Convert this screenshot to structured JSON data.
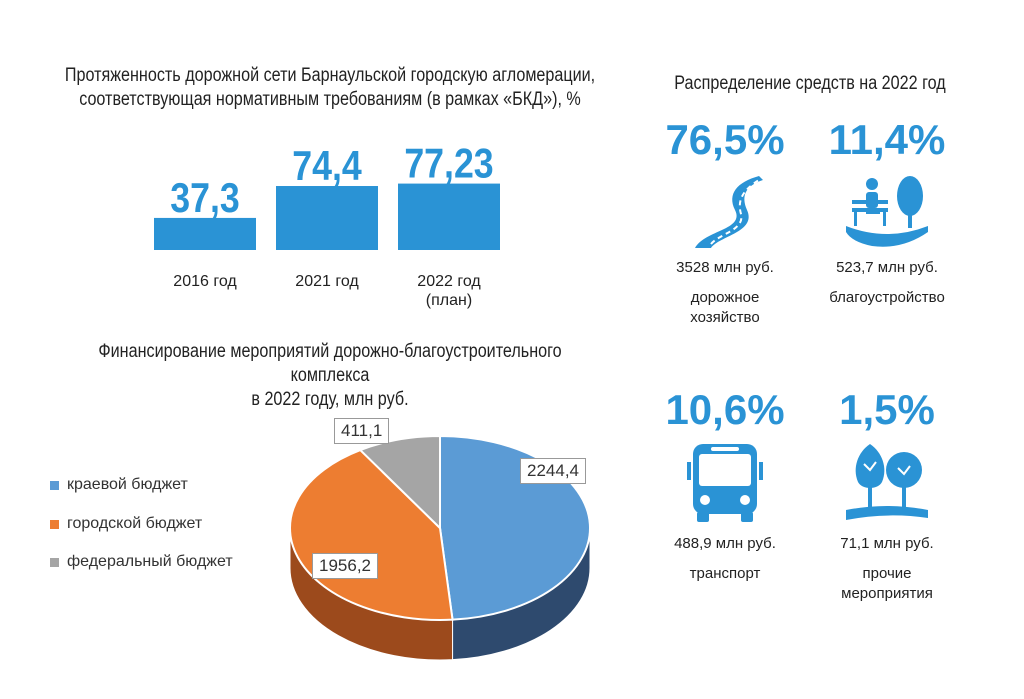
{
  "bar_block": {
    "title_line1": "Протяженность дорожной сети Барнаульской городскую агломерации,",
    "title_line2": "соответствующая нормативным требованиям (в рамках «БКД»), %"
  },
  "pie_block": {
    "title_line1": "Финансирование мероприятий дорожно-благоустроительного комплекса",
    "title_line2": "в 2022 году, млн руб."
  },
  "allocation": {
    "title": "Распределение средств на 2022 год",
    "items": [
      {
        "percent": "76,5%",
        "amount": "3528 млн руб.",
        "name_line1": "дорожное",
        "name_line2": "хозяйство",
        "icon": "road-icon"
      },
      {
        "percent": "11,4%",
        "amount": "523,7 млн руб.",
        "name_line1": "благоустройство",
        "name_line2": "",
        "icon": "park-bench-icon"
      },
      {
        "percent": "10,6%",
        "amount": "488,9 млн руб.",
        "name_line1": "транспорт",
        "name_line2": "",
        "icon": "bus-icon"
      },
      {
        "percent": "1,5%",
        "amount": "71,1 млн руб.",
        "name_line1": "прочие",
        "name_line2": "мероприятия",
        "icon": "trees-icon"
      }
    ]
  },
  "colors": {
    "accent": "#2a93d5",
    "kraevoy": "#5b9bd5",
    "gorodskoy": "#ed7d31",
    "federalny": "#a5a5a5"
  },
  "chart_data": [
    {
      "type": "bar",
      "categories": [
        "2016 год",
        "2021 год",
        "2022 год (план)"
      ],
      "category_lines": [
        [
          "2016 год"
        ],
        [
          "2021 год"
        ],
        [
          "2022 год",
          "(план)"
        ]
      ],
      "values": [
        37.3,
        74.4,
        77.23
      ],
      "value_labels": [
        "37,3",
        "74,4",
        "77,23"
      ],
      "unit": "%"
    },
    {
      "type": "pie",
      "style": "3d",
      "labels": [
        "краевой бюджет",
        "городской бюджет",
        "федеральный бюджет"
      ],
      "values": [
        2244.4,
        1956.2,
        411.1
      ],
      "value_labels": [
        "2244,4",
        "1956,2",
        "411,1"
      ],
      "legend_position": "left"
    }
  ]
}
